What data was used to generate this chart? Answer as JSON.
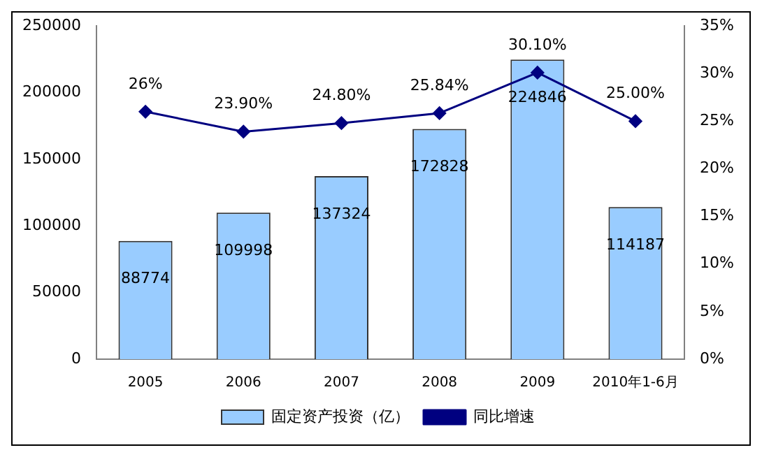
{
  "chart_data": {
    "type": "bar",
    "categories": [
      "2005",
      "2006",
      "2007",
      "2008",
      "2009",
      "2010年1-6月"
    ],
    "series": [
      {
        "name": "固定资产投资（亿）",
        "color": "#99ccff",
        "values": [
          88774,
          109998,
          137324,
          172828,
          224846,
          114187
        ],
        "value_labels": [
          "88774",
          "109998",
          "137324",
          "172828",
          "224846",
          "114187"
        ]
      },
      {
        "name": "同比增速",
        "type": "line",
        "axis": "y2",
        "color": "#000080",
        "values": [
          26,
          23.9,
          24.8,
          25.84,
          30.1,
          25.0
        ],
        "value_labels": [
          "26%",
          "23.90%",
          "24.80%",
          "25.84%",
          "30.10%",
          "25.00%"
        ]
      }
    ],
    "ylim": [
      0,
      250000
    ],
    "yticks": [
      0,
      50000,
      100000,
      150000,
      200000,
      250000
    ],
    "y2lim": [
      0,
      35
    ],
    "y2ticks": [
      {
        "value": 0,
        "label": "0%"
      },
      {
        "value": 5,
        "label": "5%"
      },
      {
        "value": 10,
        "label": "10%"
      },
      {
        "value": 15,
        "label": "15%"
      },
      {
        "value": 20,
        "label": "20%"
      },
      {
        "value": 25,
        "label": "25%"
      },
      {
        "value": 30,
        "label": "30%"
      },
      {
        "value": 35,
        "label": "35%"
      }
    ],
    "grid": false,
    "legend": "bottom",
    "marker": "diamond",
    "line_style": "solid"
  }
}
